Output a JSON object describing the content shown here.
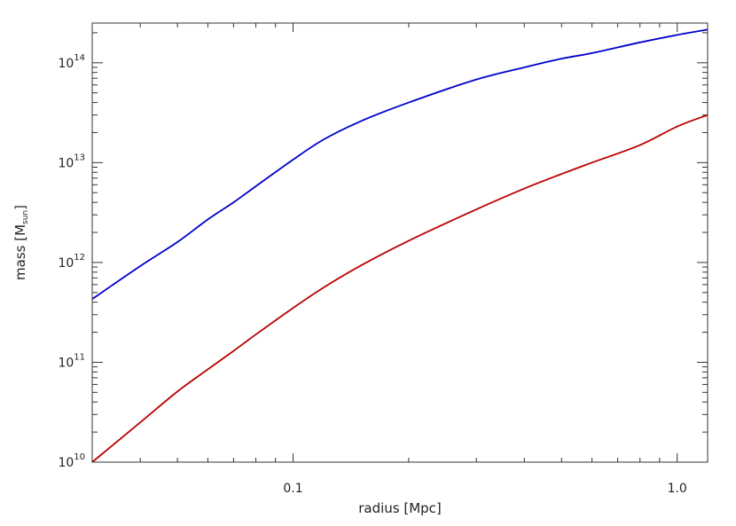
{
  "chart_data": {
    "type": "line",
    "xlabel": "radius [Mpc]",
    "ylabel": "mass [M",
    "ylabel_sub": "sun",
    "ylabel_end": "]",
    "xscale": "log",
    "yscale": "log",
    "xlim": [
      0.03,
      1.2
    ],
    "ylim": [
      10000000000.0,
      250000000000000.0
    ],
    "grid": false,
    "x_ticks": [
      {
        "value": 0.1,
        "label": "0.1"
      },
      {
        "value": 1.0,
        "label": "1.0"
      }
    ],
    "y_ticks": [
      {
        "value": 10000000000.0,
        "base": "10",
        "exp": "10"
      },
      {
        "value": 100000000000.0,
        "base": "10",
        "exp": "11"
      },
      {
        "value": 1000000000000.0,
        "base": "10",
        "exp": "12"
      },
      {
        "value": 10000000000000.0,
        "base": "10",
        "exp": "13"
      },
      {
        "value": 100000000000000.0,
        "base": "10",
        "exp": "14"
      }
    ],
    "series": [
      {
        "color": "#0000cc",
        "points": [
          [
            0.03,
            430000000000.0
          ],
          [
            0.04,
            920000000000.0
          ],
          [
            0.05,
            1600000000000.0
          ],
          [
            0.06,
            2700000000000.0
          ],
          [
            0.07,
            4000000000000.0
          ],
          [
            0.08,
            5800000000000.0
          ],
          [
            0.1,
            10700000000000.0
          ],
          [
            0.12,
            17000000000000.0
          ],
          [
            0.15,
            26000000000000.0
          ],
          [
            0.2,
            40000000000000.0
          ],
          [
            0.3,
            68000000000000.0
          ],
          [
            0.4,
            90000000000000.0
          ],
          [
            0.5,
            110000000000000.0
          ],
          [
            0.6,
            125000000000000.0
          ],
          [
            0.8,
            160000000000000.0
          ],
          [
            1.0,
            190000000000000.0
          ],
          [
            1.2,
            215000000000000.0
          ]
        ]
      },
      {
        "color": "#bb0000",
        "points": [
          [
            0.03,
            10000000000.0
          ],
          [
            0.04,
            25000000000.0
          ],
          [
            0.05,
            51000000000.0
          ],
          [
            0.06,
            85000000000.0
          ],
          [
            0.07,
            130000000000.0
          ],
          [
            0.08,
            190000000000.0
          ],
          [
            0.1,
            350000000000.0
          ],
          [
            0.12,
            560000000000.0
          ],
          [
            0.15,
            930000000000.0
          ],
          [
            0.2,
            1650000000000.0
          ],
          [
            0.3,
            3400000000000.0
          ],
          [
            0.4,
            5500000000000.0
          ],
          [
            0.5,
            7700000000000.0
          ],
          [
            0.6,
            10000000000000.0
          ],
          [
            0.8,
            15000000000000.0
          ],
          [
            1.0,
            23000000000000.0
          ],
          [
            1.2,
            30000000000000.0
          ]
        ]
      }
    ]
  }
}
